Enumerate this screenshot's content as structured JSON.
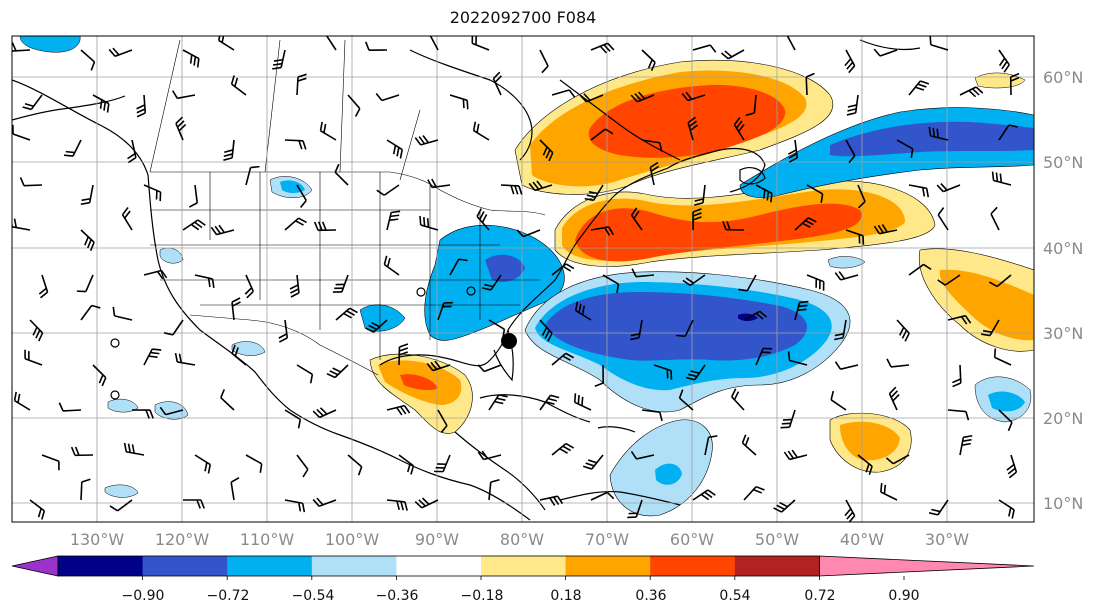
{
  "title": "2022092700 F084",
  "lon_labels": [
    "130°W",
    "120°W",
    "110°W",
    "100°W",
    "90°W",
    "80°W",
    "70°W",
    "60°W",
    "50°W",
    "40°W",
    "30°W"
  ],
  "lat_labels": [
    "60°N",
    "50°N",
    "40°N",
    "30°N",
    "20°N",
    "10°N"
  ],
  "colorbar": {
    "ticks": [
      "−0.90",
      "−0.72",
      "−0.54",
      "−0.36",
      "−0.18",
      "0.18",
      "0.36",
      "0.54",
      "0.72",
      "0.90"
    ],
    "colors": [
      "#9933cc",
      "#000088",
      "#3355cc",
      "#00b0f0",
      "#b0e0f8",
      "#ffffff",
      "#ffe88a",
      "#ffa500",
      "#ff4500",
      "#b22222",
      "#ff88b0"
    ]
  },
  "fill_colors": {
    "light_blue": "#b0e0f8",
    "blue": "#00b0f0",
    "dark_blue": "#3355cc",
    "navy": "#000088",
    "yellow": "#ffe88a",
    "orange": "#ffa500",
    "red_orange": "#ff4500",
    "dark_red": "#b22222"
  }
}
